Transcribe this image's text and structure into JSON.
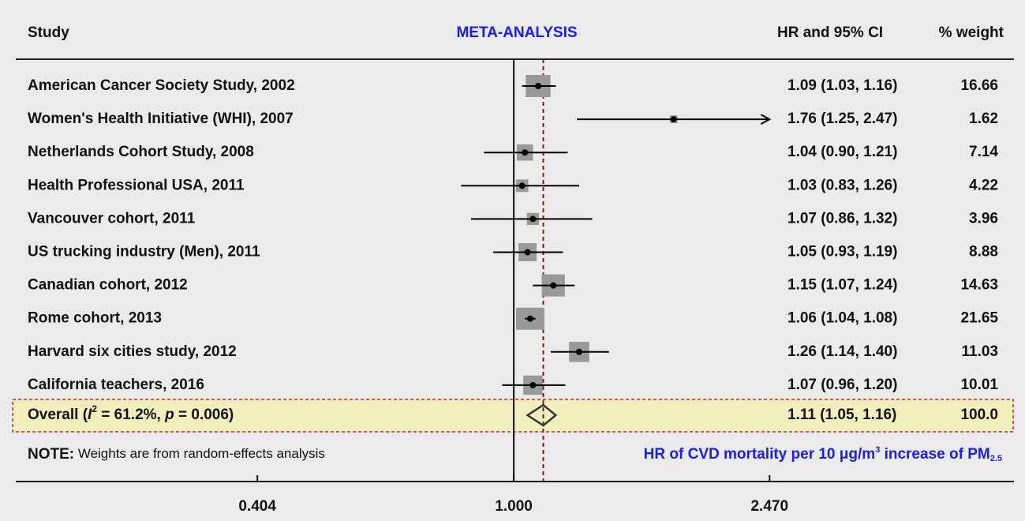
{
  "chart_data": {
    "type": "forest",
    "title": "META-ANALYSIS",
    "column_headers": [
      "Study",
      "HR and 95% CI",
      "% weight"
    ],
    "categories": [
      "American Cancer Society Study, 2002",
      "Women's Health Initiative (WHI), 2007",
      "Netherlands Cohort Study, 2008",
      "Health Professional USA, 2011",
      "Vancouver cohort, 2011",
      "US trucking industry (Men), 2011",
      "Canadian cohort, 2012",
      "Rome cohort, 2013",
      "Harvard six cities study, 2012",
      "California teachers, 2016"
    ],
    "values": [
      1.09,
      1.76,
      1.04,
      1.03,
      1.07,
      1.05,
      1.15,
      1.06,
      1.26,
      1.07
    ],
    "lower": [
      1.03,
      1.25,
      0.9,
      0.83,
      0.86,
      0.93,
      1.07,
      1.04,
      1.14,
      0.96
    ],
    "upper": [
      1.16,
      2.47,
      1.21,
      1.26,
      1.32,
      1.19,
      1.24,
      1.08,
      1.4,
      1.2
    ],
    "value_labels": [
      "1.09 (1.03, 1.16)",
      "1.76 (1.25, 2.47)",
      "1.04 (0.90, 1.21)",
      "1.03 (0.83, 1.26)",
      "1.07 (0.86, 1.32)",
      "1.05 (0.93, 1.19)",
      "1.15 (1.07, 1.24)",
      "1.06 (1.04, 1.08)",
      "1.26 (1.14, 1.40)",
      "1.07 (0.96, 1.20)"
    ],
    "weights": [
      16.66,
      1.62,
      7.14,
      4.22,
      3.96,
      8.88,
      14.63,
      21.65,
      11.03,
      10.01
    ],
    "arrow_upper": [
      false,
      true,
      false,
      false,
      false,
      false,
      false,
      false,
      false,
      false
    ],
    "overall": {
      "label_parts": [
        "Overall (",
        "I",
        "2",
        " = 61.2%, ",
        "p",
        " = 0.006)"
      ],
      "value": 1.11,
      "lower": 1.05,
      "upper": 1.16,
      "value_label": "1.11 (1.05, 1.16)",
      "weight": 100,
      "weight_label": "100.0"
    },
    "note": [
      "NOTE:",
      " Weights are from random-effects analysis"
    ],
    "axis_note": [
      "HR of CVD mortality per 10 μg/m",
      "3",
      " increase of PM",
      "2.5"
    ],
    "log_scale": true,
    "xlim": [
      0.172,
      5.86
    ],
    "xticks": [
      {
        "value": 0.404,
        "label": "0.404"
      },
      {
        "value": 1,
        "label": "1.000"
      },
      {
        "value": 2.47,
        "label": "2.470"
      }
    ],
    "box_color": "#999999",
    "point_color": "#000000",
    "reference_color": "#7a1f1f"
  }
}
